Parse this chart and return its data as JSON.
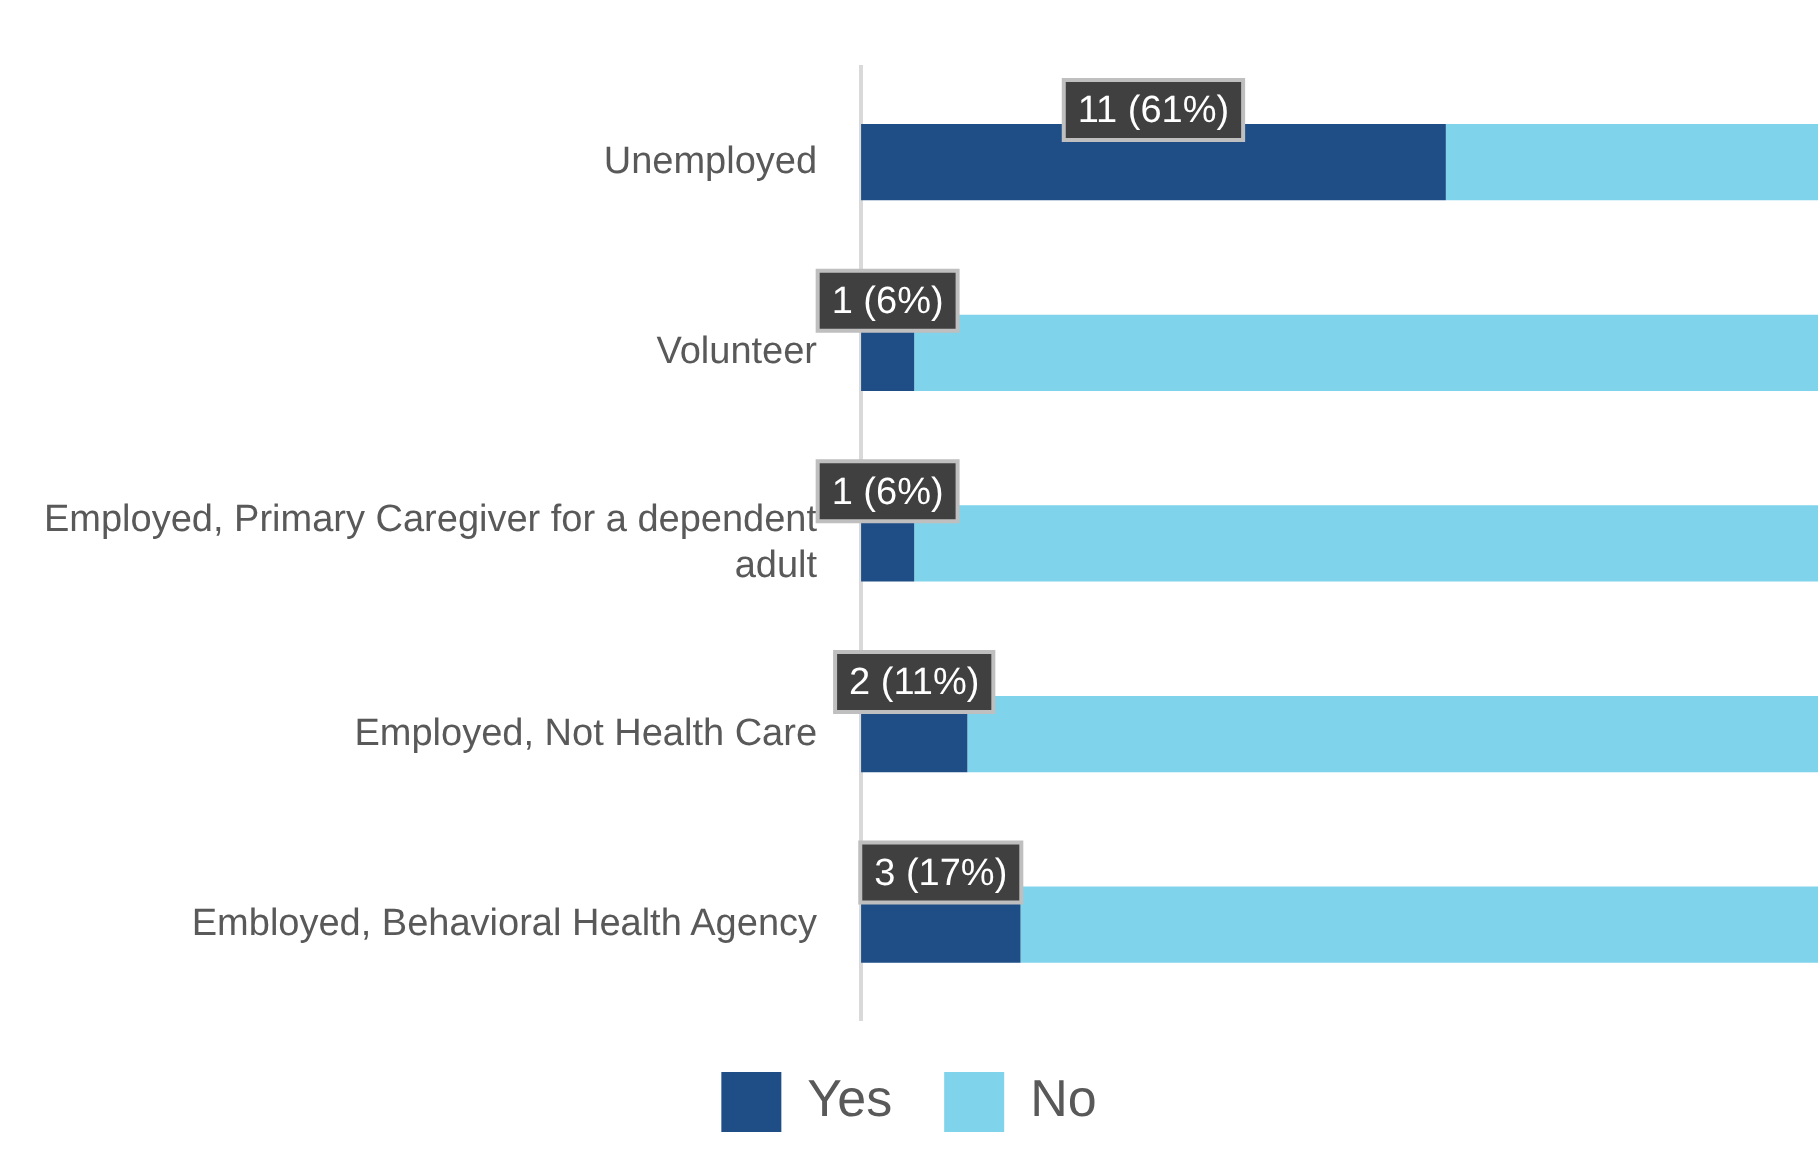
{
  "chart_data": {
    "type": "bar",
    "orientation": "horizontal",
    "stacked": true,
    "legend": "bottom",
    "categories": [
      "Unemployed",
      "Volunteer",
      "Employed, Primary Caregiver for a dependent adult",
      "Employed, Not Health Care",
      "Embloyed, Behavioral Health Agency"
    ],
    "series": [
      {
        "name": "Yes",
        "color": "#1f4e87",
        "values": [
          11,
          1,
          1,
          2,
          3
        ],
        "value_labels": [
          "11 (61%)",
          "1 (6%)",
          "1 (6%)",
          "2 (11%)",
          "3 (17%)"
        ]
      },
      {
        "name": "No",
        "color": "#7fd3ea",
        "values": [
          7,
          17,
          17,
          16,
          15
        ]
      }
    ]
  }
}
